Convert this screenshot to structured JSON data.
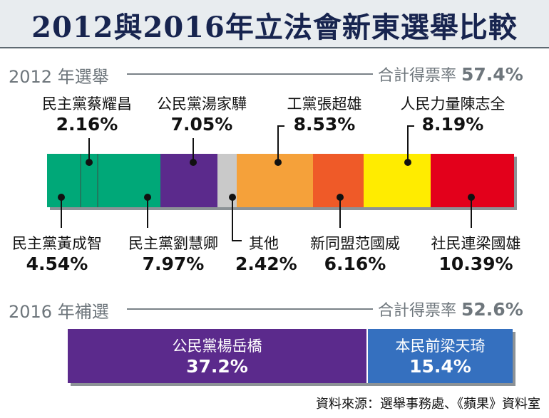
{
  "title": "2012與2016年立法會新東選舉比較",
  "section_2012": {
    "year": "2012 年選舉",
    "turnout_label": "合計得票率",
    "turnout_value": "57.4%"
  },
  "section_2016": {
    "year": "2016 年補選",
    "turnout_label": "合計得票率",
    "turnout_value": "52.6%"
  },
  "chart_data": [
    {
      "type": "bar",
      "orientation": "horizontal-stacked",
      "title": "2012 年選舉",
      "total_label": "合計得票率 57.4%",
      "segments": [
        {
          "name": "民主黨黃成智",
          "value": 4.54,
          "label": "4.54%",
          "color": "#00a878"
        },
        {
          "name": "民主黨蔡耀昌",
          "value": 2.16,
          "label": "2.16%",
          "color": "#00a878"
        },
        {
          "name": "民主黨劉慧卿",
          "value": 7.97,
          "label": "7.97%",
          "color": "#00a878"
        },
        {
          "name": "公民黨湯家驊",
          "value": 7.05,
          "label": "7.05%",
          "color": "#5b2a8c"
        },
        {
          "name": "其他",
          "value": 2.42,
          "label": "2.42%",
          "color": "#c9c9c9"
        },
        {
          "name": "工黨張超雄",
          "value": 8.53,
          "label": "8.53%",
          "color": "#f5a13a"
        },
        {
          "name": "新同盟范國威",
          "value": 6.16,
          "label": "6.16%",
          "color": "#ef5a28"
        },
        {
          "name": "人民力量陳志全",
          "value": 8.19,
          "label": "8.19%",
          "color": "#ffec00"
        },
        {
          "name": "社民連梁國雄",
          "value": 10.39,
          "label": "10.39%",
          "color": "#e3001b"
        }
      ]
    },
    {
      "type": "bar",
      "orientation": "horizontal-stacked",
      "title": "2016 年補選",
      "total_label": "合計得票率 52.6%",
      "segments": [
        {
          "name": "公民黨楊岳橋",
          "value": 37.2,
          "label": "37.2%",
          "color": "#5b2a8c"
        },
        {
          "name": "本民前梁天琦",
          "value": 15.4,
          "label": "15.4%",
          "color": "#3570bf"
        }
      ]
    }
  ],
  "source": "資料來源：選舉事務處、《蘋果》資料室"
}
